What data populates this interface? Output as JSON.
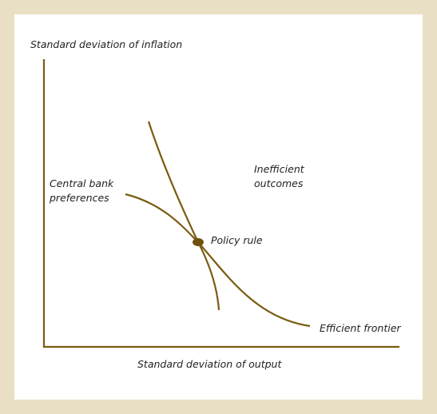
{
  "axes": {
    "y_label": "Standard deviation of inflation",
    "x_label": "Standard deviation of output"
  },
  "labels": {
    "inefficient": [
      "Inefficient",
      "outcomes"
    ],
    "central_bank": [
      "Central bank",
      "preferences"
    ],
    "policy_rule": "Policy rule",
    "efficient_frontier": "Efficient frontier"
  }
}
